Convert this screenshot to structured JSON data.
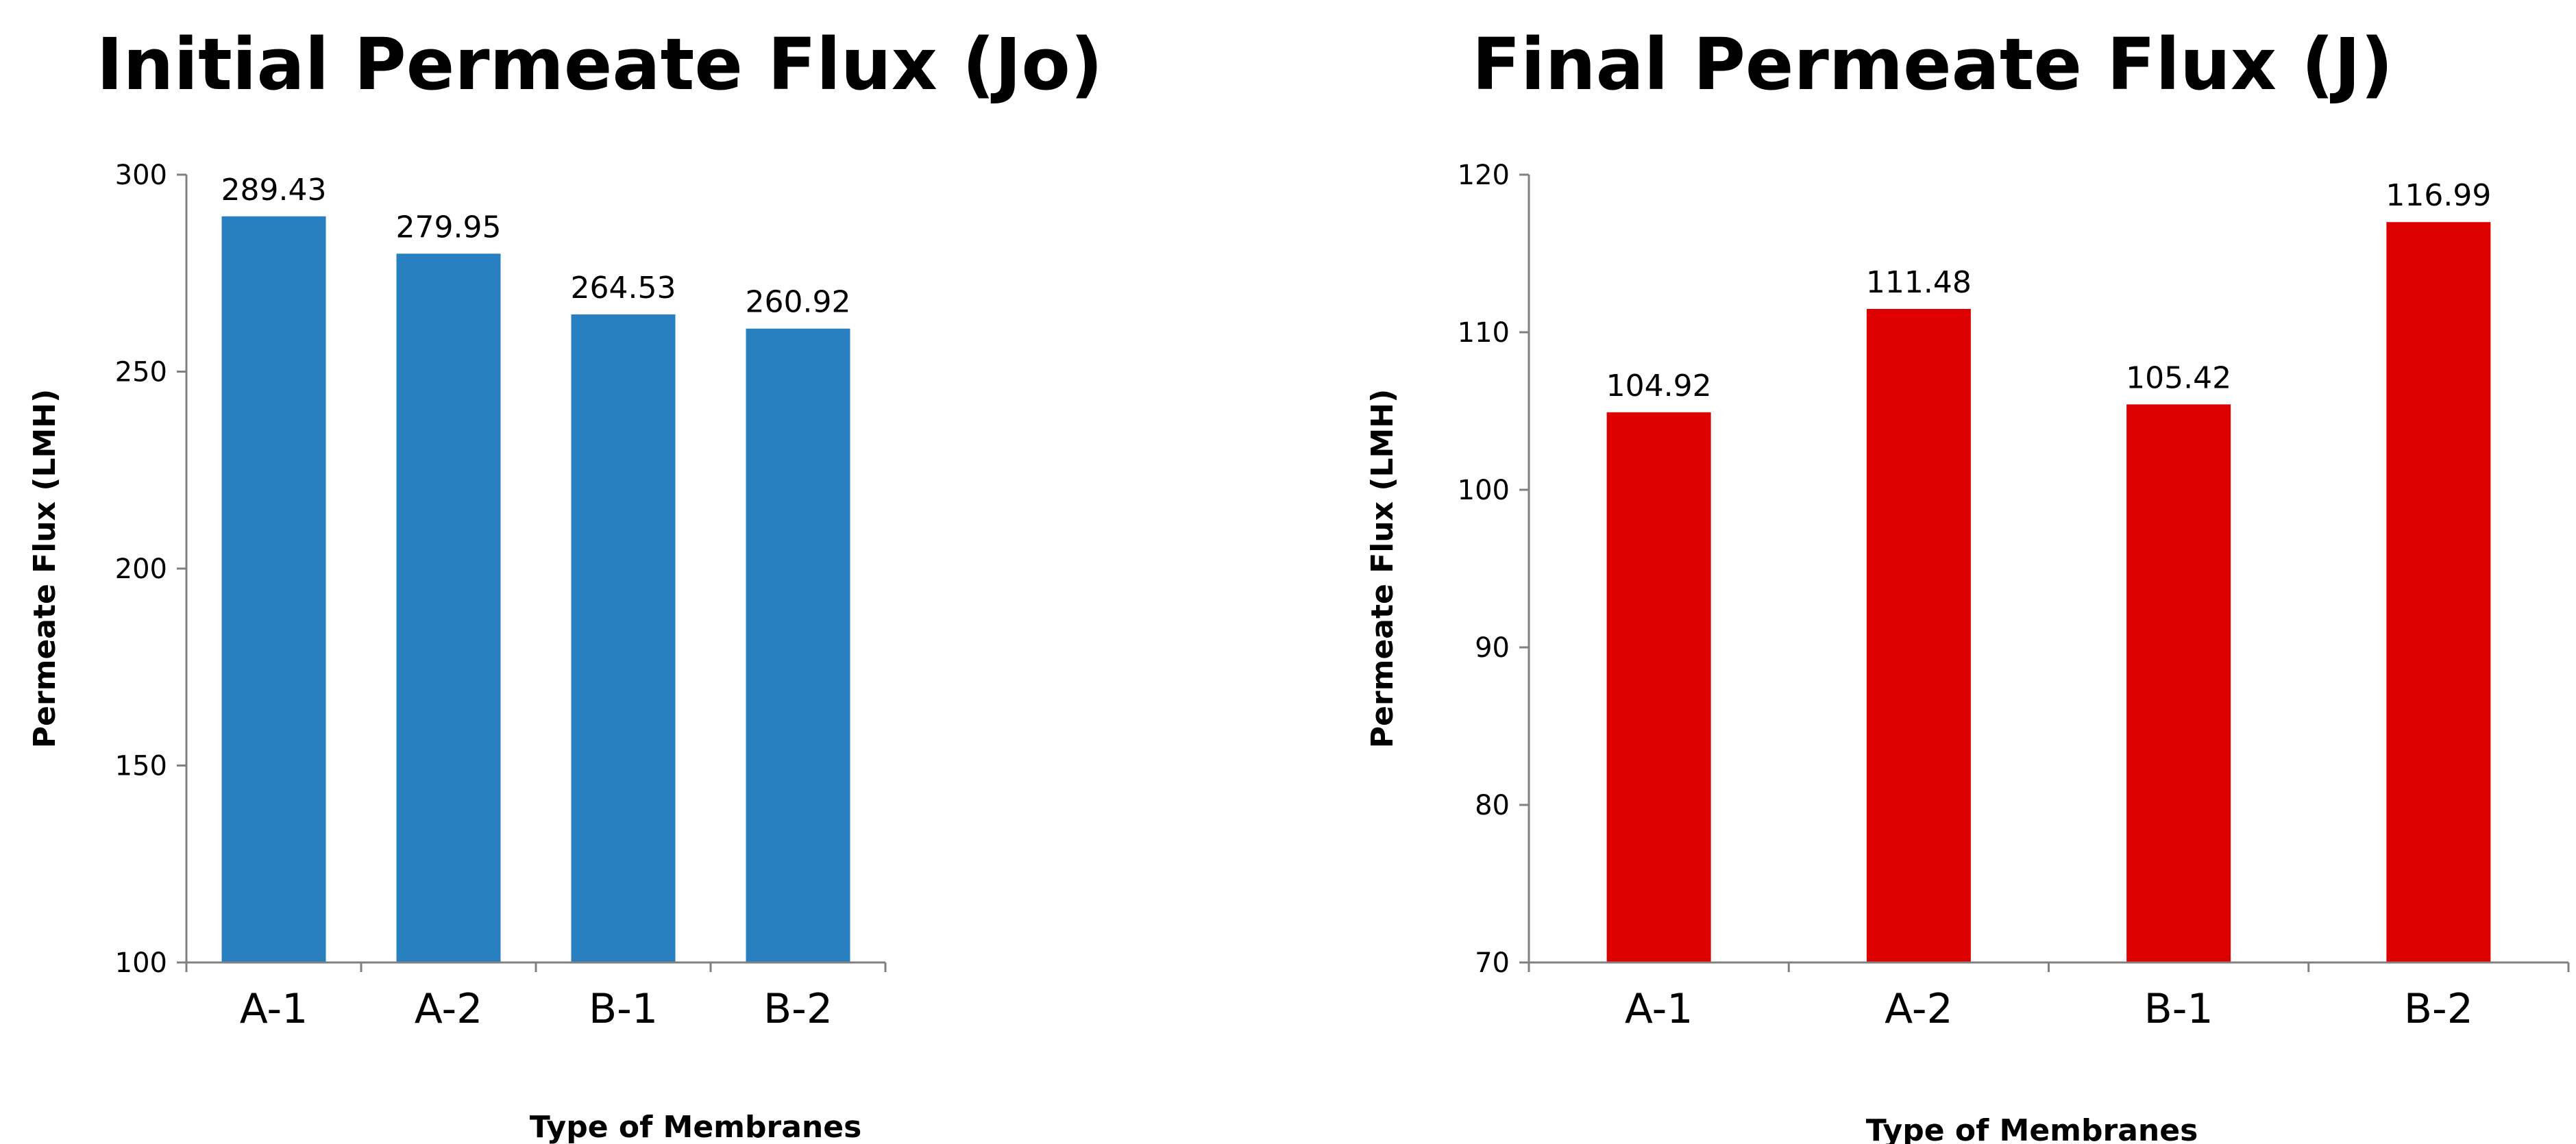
{
  "chart_data": [
    {
      "type": "bar",
      "title": "Initial Permeate Flux (Jo)",
      "xlabel": "Type of Membranes",
      "ylabel": "Permeate Flux (LMH)",
      "categories": [
        "A-1",
        "A-2",
        "B-1",
        "B-2"
      ],
      "values": [
        289.43,
        279.95,
        264.53,
        260.92
      ],
      "data_labels": [
        "289.43",
        "279.95",
        "264.53",
        "260.92"
      ],
      "ylim": [
        100,
        300
      ],
      "yticks": [
        100,
        150,
        200,
        250,
        300
      ],
      "bar_color": "#2880C0",
      "grid": false,
      "legend": "none"
    },
    {
      "type": "bar",
      "title": "Final Permeate Flux (J)",
      "xlabel": "Type of Membranes",
      "ylabel": "Permeate Flux (LMH)",
      "categories": [
        "A-1",
        "A-2",
        "B-1",
        "B-2"
      ],
      "values": [
        104.92,
        111.48,
        105.42,
        116.99
      ],
      "data_labels": [
        "104.92",
        "111.48",
        "105.42",
        "116.99"
      ],
      "ylim": [
        70,
        120
      ],
      "yticks": [
        70,
        80,
        90,
        100,
        110,
        120
      ],
      "bar_color": "#DD0000",
      "grid": false,
      "legend": "none"
    }
  ]
}
